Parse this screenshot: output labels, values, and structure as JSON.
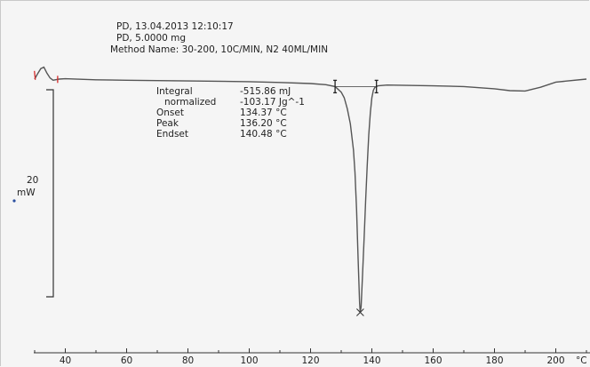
{
  "header": {
    "line1": "PD, 13.04.2013 12:10:17",
    "line2": "PD, 5.0000 mg",
    "line3": "Method Name: 30-200, 10C/MIN, N2 40ML/MIN"
  },
  "results": {
    "integral_label": "Integral",
    "integral_value": "-515.86 mJ",
    "normalized_label": "normalized",
    "normalized_value": "-103.17 Jg^-1",
    "onset_label": "Onset",
    "onset_value": "134.37 °C",
    "peak_label": "Peak",
    "peak_value": "136.20 °C",
    "endset_label": "Endset",
    "endset_value": "140.48 °C"
  },
  "scale_bar": {
    "value": "20",
    "unit": "mW"
  },
  "colors": {
    "curve": "#555555",
    "marker": "#d62b2b",
    "axis": "#333333",
    "background": "#f5f5f5"
  },
  "chart_data": {
    "type": "line",
    "title": "",
    "xlabel": "°C",
    "ylabel": "",
    "xlim": [
      30,
      210
    ],
    "ylim": [
      -65,
      5
    ],
    "x_ticks": [
      40,
      60,
      80,
      100,
      120,
      140,
      160,
      180,
      200
    ],
    "grid": false,
    "series": [
      {
        "x": [
          30,
          31,
          32,
          33,
          34,
          35,
          36,
          38,
          40,
          50,
          60,
          80,
          100,
          110,
          120,
          125,
          128,
          130,
          131,
          132,
          133,
          134,
          134.5,
          135,
          135.5,
          136,
          136.2,
          136.5,
          137,
          137.5,
          138,
          138.5,
          139,
          139.5,
          140,
          140.5,
          141,
          142,
          145,
          160,
          170,
          180,
          185,
          190,
          195,
          200,
          210
        ],
        "y": [
          0.0,
          1.5,
          2.8,
          3.2,
          1.6,
          0.3,
          -0.3,
          0.0,
          0.1,
          -0.2,
          -0.3,
          -0.5,
          -0.7,
          -0.9,
          -1.2,
          -1.5,
          -2.0,
          -3.5,
          -5.0,
          -8.0,
          -12.0,
          -19.0,
          -25.0,
          -35.0,
          -48.0,
          -60.0,
          -62.5,
          -61.0,
          -52.0,
          -42.0,
          -32.0,
          -23.0,
          -15.0,
          -9.0,
          -5.0,
          -3.0,
          -2.2,
          -1.8,
          -1.6,
          -1.8,
          -2.0,
          -2.6,
          -3.1,
          -3.2,
          -2.2,
          -0.8,
          0.0
        ]
      }
    ],
    "annotations": {
      "onset": 134.37,
      "peak": 136.2,
      "endset": 140.48,
      "integration_start": 128,
      "integration_end": 141.5
    }
  }
}
